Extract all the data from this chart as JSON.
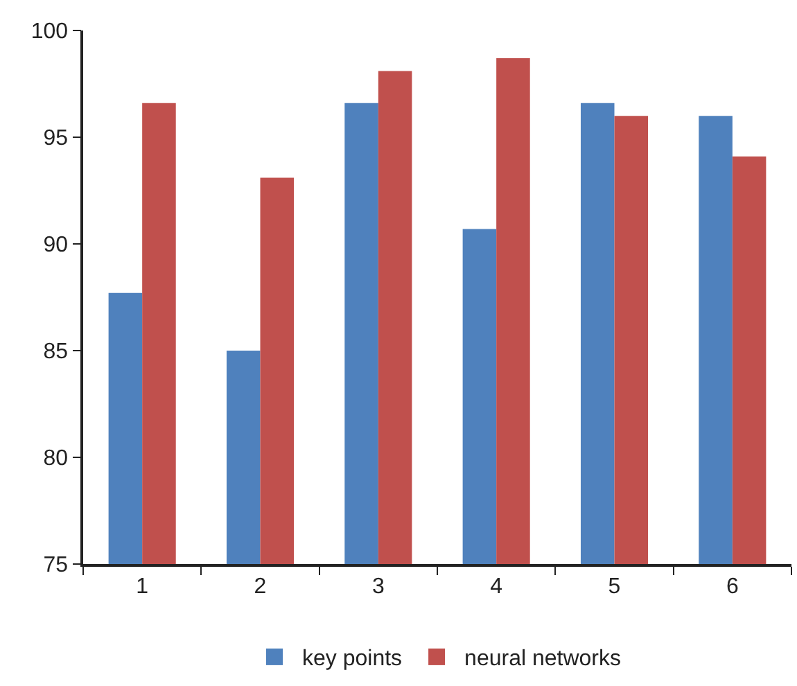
{
  "chart_data": {
    "type": "bar",
    "categories": [
      "1",
      "2",
      "3",
      "4",
      "5",
      "6"
    ],
    "series": [
      {
        "name": "key points",
        "color": "#4f81bd",
        "values": [
          87.7,
          85.0,
          96.6,
          90.7,
          96.6,
          96.0
        ]
      },
      {
        "name": "neural networks",
        "color": "#c0504d",
        "values": [
          96.6,
          93.1,
          98.1,
          98.7,
          96.0,
          94.1
        ]
      }
    ],
    "ylim": [
      75,
      100
    ],
    "yticks": [
      75,
      80,
      85,
      90,
      95,
      100
    ],
    "grid": false,
    "legend": "bottom"
  }
}
